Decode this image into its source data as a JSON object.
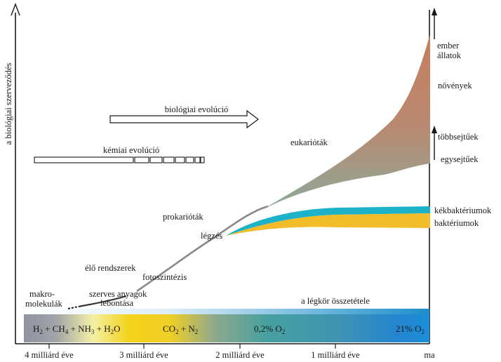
{
  "y_axis_label": "a biológiai szerveződés",
  "x_ticks": [
    "4 milliárd éve",
    "3 milliárd éve",
    "2 milliárd éve",
    "1 milliárd éve",
    "ma"
  ],
  "evolution": {
    "biological": "biológiai evolúció",
    "chemical": "kémiai evolúció"
  },
  "stages": {
    "macromolecules_line1": "makro-",
    "macromolecules_line2": "molekulák",
    "organic_breakdown_line1": "szerves anyagok",
    "organic_breakdown_line2": "lebontása",
    "living_systems": "élő rendszerek",
    "photosynthesis": "fotoszintézis",
    "respiration": "légzés",
    "prokaryotes": "prokarióták",
    "eukaryotes": "eukarióták"
  },
  "right_labels": {
    "humans": "ember",
    "animals": "állatok",
    "plants": "növények",
    "multicellular": "többsejtűek",
    "unicellular": "egysejtűek",
    "cyanobacteria": "kékbaktériumok",
    "bacteria": "baktériumok"
  },
  "atmosphere": {
    "title": "a légkör összetétele",
    "stage1_H2": "H",
    "stage1_sub2a": "2",
    "stage1_plus1": " + CH",
    "stage1_sub4": "4",
    "stage1_plus2": " + NH",
    "stage1_sub3": "3",
    "stage1_plus3": " + H",
    "stage1_sub2b": "2",
    "stage1_O": "O",
    "stage2_a": "CO",
    "stage2_sub": "2",
    "stage2_b": " + N",
    "stage2_sub2": "2",
    "stage3_a": "0,2% O",
    "stage3_sub": "2",
    "stage4_a": "21% O",
    "stage4_sub": "2"
  },
  "colors": {
    "eukaryote_top": "#c9805f",
    "eukaryote_bottom": "#8aa596",
    "cyanobacteria": "#1fb3c8",
    "bacteria": "#f2bd2a",
    "atmo_gray": "#8e94a4",
    "atmo_yellow": "#f4d21a",
    "atmo_teal": "#3f9c9a",
    "atmo_blue": "#1f86cf"
  }
}
